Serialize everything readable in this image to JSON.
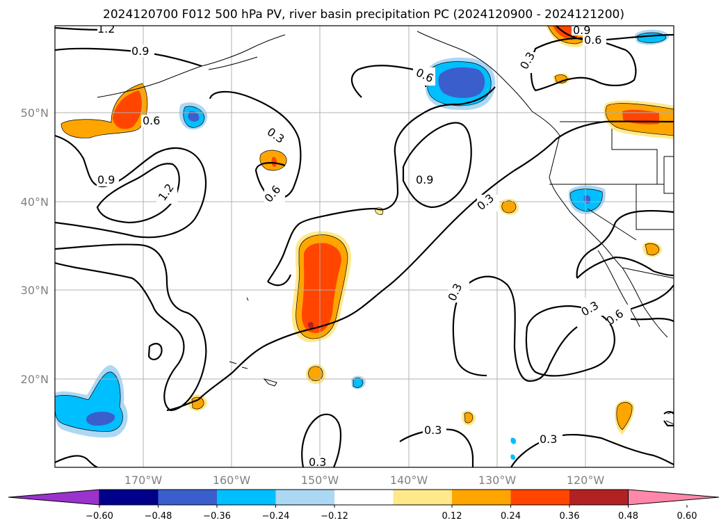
{
  "title": "2024120700 F012 500 hPa PV, river basin precipitation PC (2024120900 - 2024121200)",
  "axes": {
    "lat_labels": [
      "50°N",
      "40°N",
      "30°N",
      "20°N"
    ],
    "lon_labels": [
      "170°W",
      "160°W",
      "150°W",
      "140°W",
      "130°W",
      "120°W"
    ]
  },
  "colorbar": {
    "tick_labels": [
      "−0.60",
      "−0.48",
      "−0.36",
      "−0.24",
      "−0.12",
      "0.12",
      "0.24",
      "0.36",
      "0.48",
      "0.60"
    ],
    "colors": [
      "#9933cc",
      "#00008b",
      "#3a5fcd",
      "#00bfff",
      "#add8f4",
      "#ffffff",
      "#ffe98a",
      "#ffa500",
      "#ff4500",
      "#b22222",
      "#ff88aa"
    ]
  },
  "contour_labels": {
    "l1": "1.2",
    "l2": "0.9",
    "l3": "0.6",
    "l4": "0.9",
    "l5": "1.2",
    "l6": "0.3",
    "l7": "0.6",
    "l8": "0.6",
    "l9": "0.9",
    "l10": "0.3",
    "l11": "0.3",
    "l12": "0.3",
    "l13": "0.6",
    "l14": "0.3",
    "l15": "0.3",
    "l16": "0.3",
    "l17": "0.6",
    "l18": "0.9",
    "l19": "0.3"
  }
}
